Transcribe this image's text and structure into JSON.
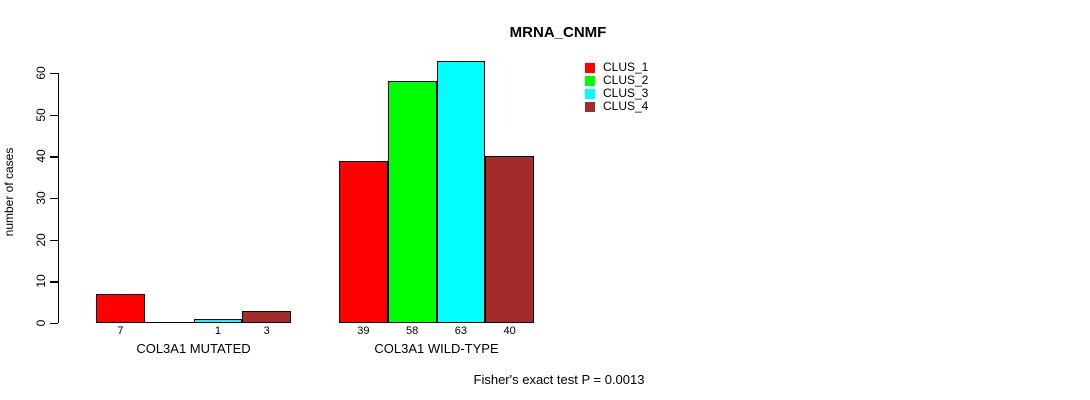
{
  "chart_data": {
    "type": "bar",
    "title": "MRNA_CNMF",
    "ylabel": "number of cases",
    "ylim": [
      0,
      60
    ],
    "yticks": [
      0,
      10,
      20,
      30,
      40,
      50,
      60
    ],
    "categories": [
      "COL3A1 MUTATED",
      "COL3A1 WILD-TYPE"
    ],
    "series": [
      {
        "name": "CLUS_1",
        "color": "#ff0000",
        "values": [
          7,
          39
        ]
      },
      {
        "name": "CLUS_2",
        "color": "#00ff00",
        "values": [
          0,
          58
        ]
      },
      {
        "name": "CLUS_3",
        "color": "#00ffff",
        "values": [
          1,
          63
        ]
      },
      {
        "name": "CLUS_4",
        "color": "#a52a2a",
        "values": [
          3,
          40
        ]
      }
    ],
    "grid": "off",
    "legend_position": "top-right",
    "bar_value_labels_shown": true,
    "annotation": "Fisher's exact test P = 0.0013"
  }
}
